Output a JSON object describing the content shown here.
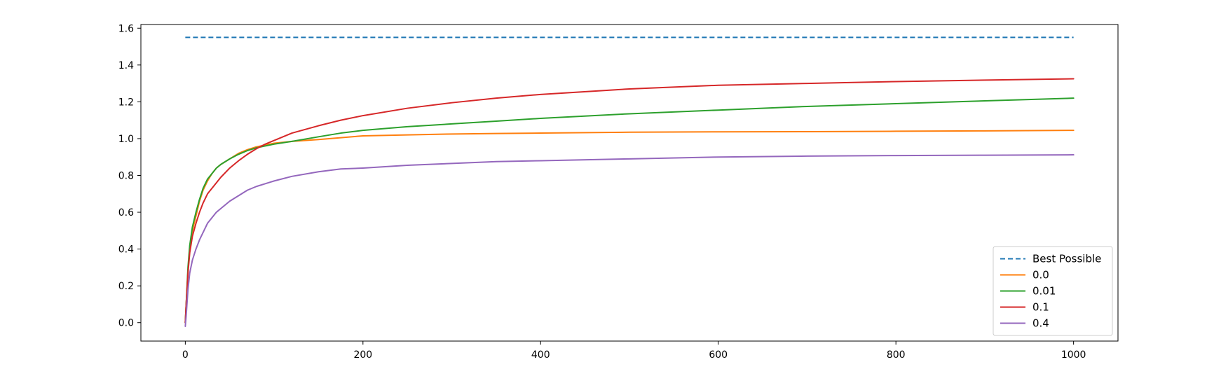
{
  "chart_data": {
    "type": "line",
    "title": "",
    "xlabel": "",
    "ylabel": "",
    "xlim": [
      -50,
      1050
    ],
    "ylim": [
      -0.1,
      1.62
    ],
    "xticks": [
      0,
      200,
      400,
      600,
      800,
      1000
    ],
    "yticks": [
      0.0,
      0.2,
      0.4,
      0.6,
      0.8,
      1.0,
      1.2,
      1.4,
      1.6
    ],
    "xtick_labels": [
      "0",
      "200",
      "400",
      "600",
      "800",
      "1000"
    ],
    "ytick_labels": [
      "0.0",
      "0.2",
      "0.4",
      "0.6",
      "0.8",
      "1.0",
      "1.2",
      "1.4",
      "1.6"
    ],
    "grid": false,
    "legend_position": "bottom-right",
    "series": [
      {
        "name": "Best Possible",
        "color": "#1f77b4",
        "dashed": true,
        "x": [
          0,
          1000
        ],
        "y": [
          1.55,
          1.55
        ]
      },
      {
        "name": "0.0",
        "color": "#ff7f0e",
        "dashed": false,
        "x": [
          0,
          1,
          3,
          5,
          8,
          12,
          16,
          20,
          25,
          30,
          35,
          40,
          50,
          60,
          70,
          80,
          90,
          100,
          120,
          150,
          175,
          200,
          250,
          300,
          350,
          400,
          500,
          600,
          700,
          800,
          900,
          1000
        ],
        "y": [
          0.0,
          0.1,
          0.28,
          0.4,
          0.5,
          0.58,
          0.66,
          0.72,
          0.77,
          0.81,
          0.84,
          0.86,
          0.89,
          0.92,
          0.94,
          0.955,
          0.965,
          0.975,
          0.985,
          0.995,
          1.005,
          1.015,
          1.02,
          1.025,
          1.028,
          1.03,
          1.035,
          1.037,
          1.038,
          1.04,
          1.042,
          1.045
        ]
      },
      {
        "name": "0.01",
        "color": "#2ca02c",
        "dashed": false,
        "x": [
          0,
          1,
          3,
          5,
          8,
          12,
          16,
          20,
          25,
          30,
          35,
          40,
          50,
          60,
          70,
          80,
          90,
          100,
          120,
          150,
          175,
          200,
          250,
          300,
          350,
          400,
          500,
          600,
          700,
          800,
          900,
          1000
        ],
        "y": [
          0.0,
          0.1,
          0.3,
          0.42,
          0.52,
          0.6,
          0.67,
          0.73,
          0.78,
          0.81,
          0.84,
          0.86,
          0.89,
          0.915,
          0.935,
          0.95,
          0.96,
          0.97,
          0.985,
          1.01,
          1.03,
          1.045,
          1.065,
          1.08,
          1.095,
          1.11,
          1.135,
          1.155,
          1.175,
          1.19,
          1.205,
          1.22
        ]
      },
      {
        "name": "0.1",
        "color": "#d62728",
        "dashed": false,
        "x": [
          0,
          1,
          3,
          5,
          8,
          12,
          16,
          20,
          25,
          30,
          35,
          40,
          50,
          60,
          70,
          80,
          90,
          100,
          120,
          150,
          175,
          200,
          250,
          300,
          350,
          400,
          500,
          600,
          700,
          800,
          900,
          1000
        ],
        "y": [
          0.0,
          0.1,
          0.27,
          0.38,
          0.47,
          0.54,
          0.6,
          0.65,
          0.7,
          0.73,
          0.76,
          0.79,
          0.84,
          0.88,
          0.915,
          0.945,
          0.97,
          0.99,
          1.03,
          1.07,
          1.1,
          1.125,
          1.165,
          1.195,
          1.22,
          1.24,
          1.27,
          1.29,
          1.3,
          1.31,
          1.318,
          1.325
        ]
      },
      {
        "name": "0.4",
        "color": "#9467bd",
        "dashed": false,
        "x": [
          0,
          1,
          3,
          5,
          8,
          12,
          16,
          20,
          25,
          30,
          35,
          40,
          50,
          60,
          70,
          80,
          90,
          100,
          120,
          150,
          175,
          200,
          250,
          300,
          350,
          400,
          500,
          600,
          700,
          800,
          900,
          1000
        ],
        "y": [
          -0.02,
          0.04,
          0.18,
          0.27,
          0.34,
          0.4,
          0.45,
          0.49,
          0.54,
          0.57,
          0.6,
          0.62,
          0.66,
          0.69,
          0.72,
          0.74,
          0.755,
          0.77,
          0.795,
          0.82,
          0.835,
          0.84,
          0.855,
          0.865,
          0.875,
          0.88,
          0.89,
          0.9,
          0.905,
          0.908,
          0.91,
          0.912
        ]
      }
    ]
  }
}
